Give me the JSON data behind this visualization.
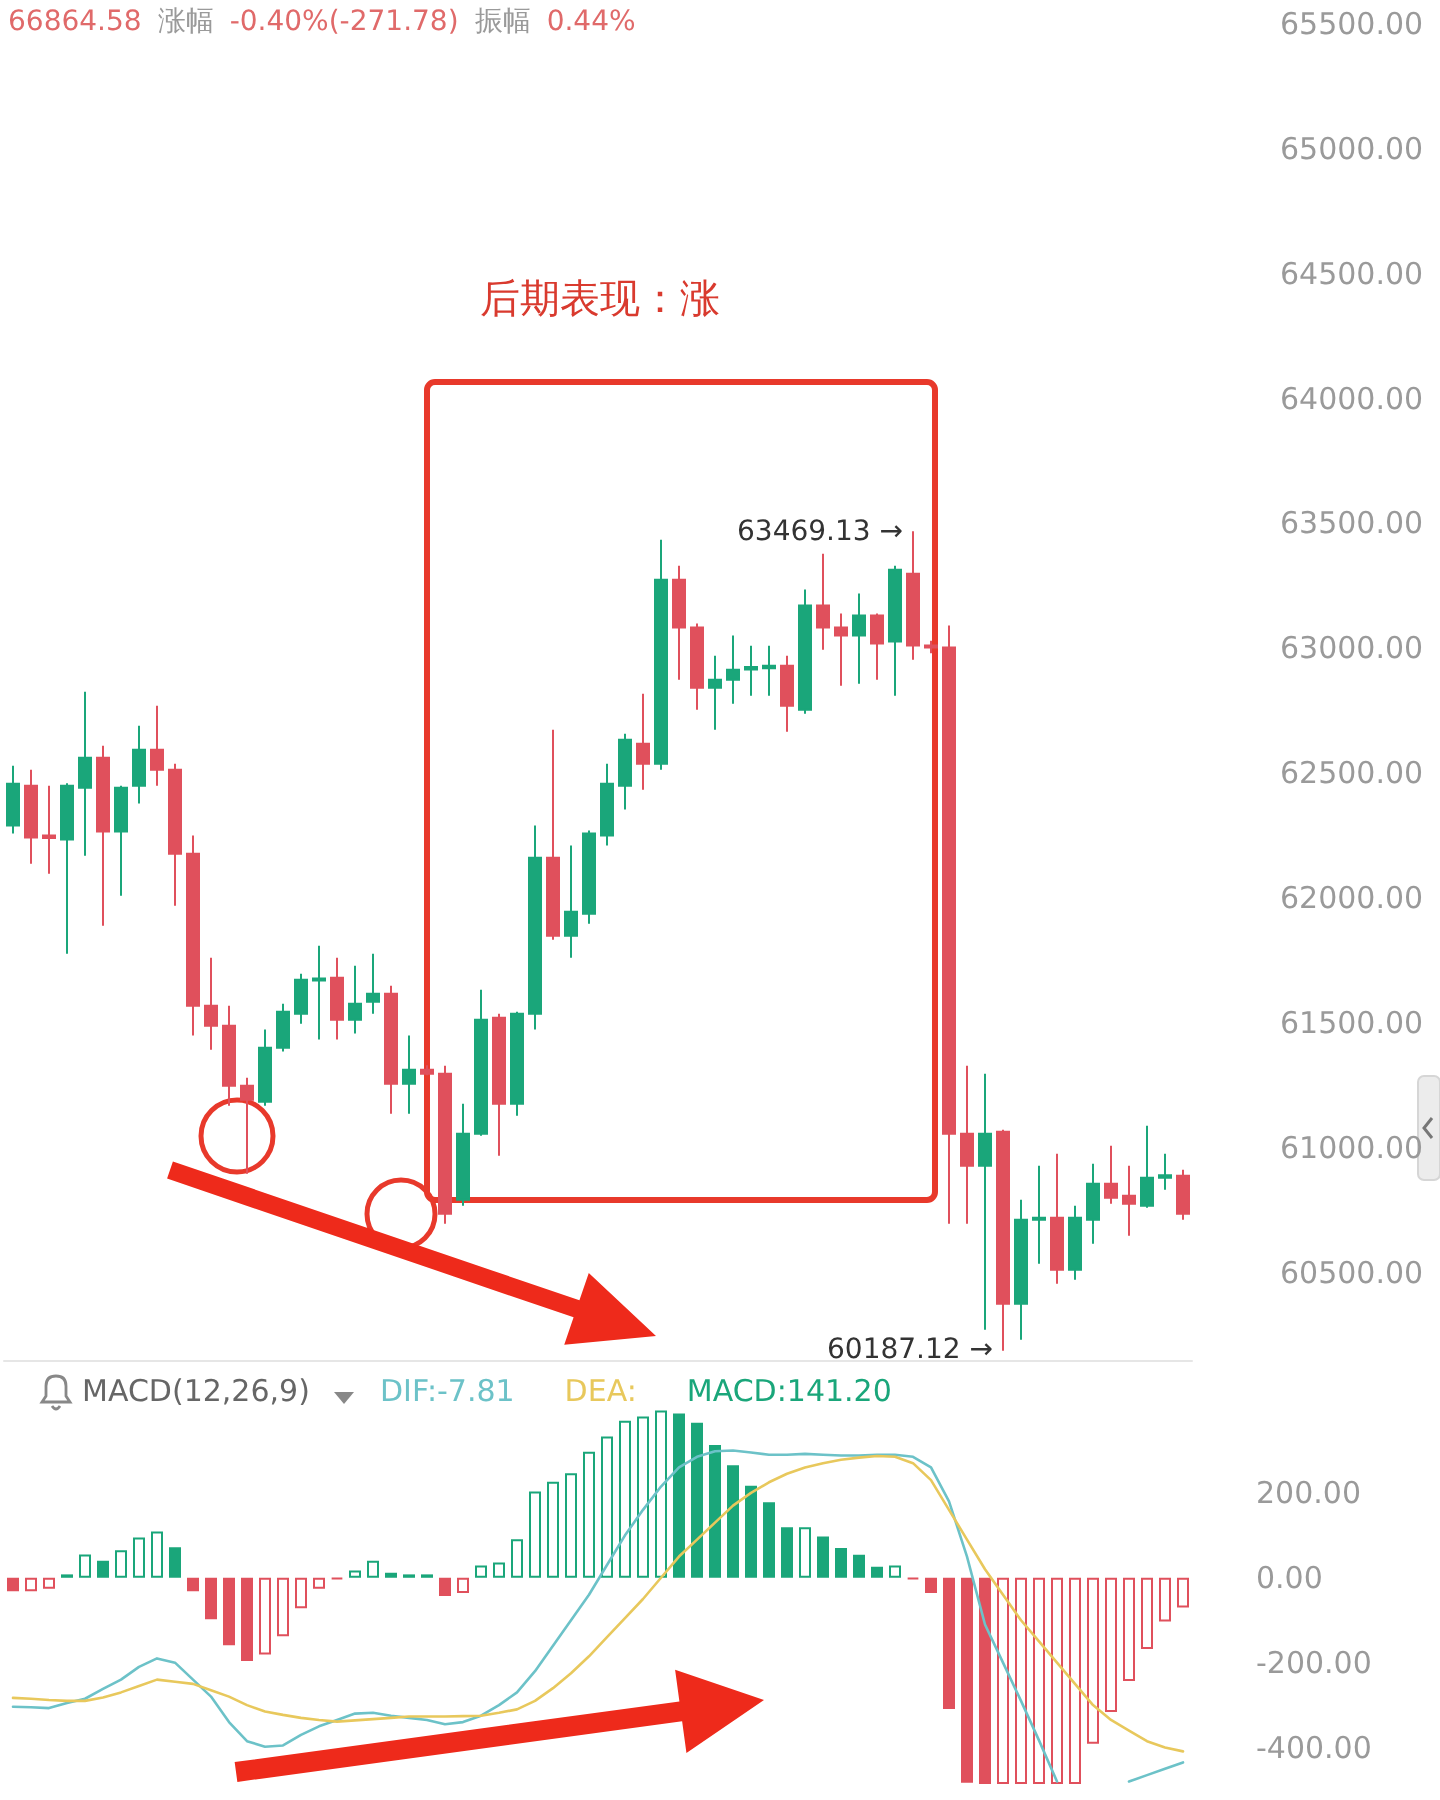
{
  "chart_data": [
    {
      "type": "candlestick",
      "annotations": [
        "66864.58",
        "涨幅",
        "-0.40%(-271.78)",
        "振幅",
        "0.44%",
        "后期表现：涨",
        "63469.13 →",
        "60187.12 →"
      ],
      "categories": [
        null,
        null,
        null,
        null,
        null,
        null,
        null,
        null,
        null,
        null,
        null,
        null,
        null,
        null,
        null,
        null,
        null,
        null,
        null,
        null,
        null,
        null,
        null,
        null,
        null,
        null,
        null,
        null,
        null,
        null,
        null,
        null,
        null,
        null,
        null,
        null,
        null,
        null,
        null,
        null,
        null,
        null,
        null,
        null,
        null,
        null,
        null,
        null,
        null,
        null,
        null,
        null,
        null,
        null,
        null,
        null,
        null,
        null,
        null,
        null,
        null,
        null,
        null,
        null,
        null,
        null
      ],
      "ohlc": [
        [
          62290,
          62530,
          62258,
          62458
        ],
        [
          62450,
          62514,
          62137,
          62242
        ],
        [
          62250,
          62450,
          62097,
          62240
        ],
        [
          62234,
          62460,
          61777,
          62450
        ],
        [
          62442,
          62826,
          62169,
          62562
        ],
        [
          62562,
          62610,
          61889,
          62266
        ],
        [
          62266,
          62450,
          62009,
          62442
        ],
        [
          62450,
          62690,
          62378,
          62594
        ],
        [
          62594,
          62770,
          62450,
          62514
        ],
        [
          62514,
          62538,
          61969,
          62177
        ],
        [
          62177,
          62250,
          61449,
          61569
        ],
        [
          61569,
          61761,
          61392,
          61489
        ],
        [
          61489,
          61569,
          61168,
          61248
        ],
        [
          61248,
          61280,
          60896,
          61192
        ],
        [
          61184,
          61473,
          61168,
          61400
        ],
        [
          61400,
          61577,
          61385,
          61545
        ],
        [
          61537,
          61697,
          61497,
          61673
        ],
        [
          61670,
          61809,
          61433,
          61678
        ],
        [
          61681,
          61761,
          61433,
          61513
        ],
        [
          61513,
          61729,
          61457,
          61577
        ],
        [
          61585,
          61777,
          61537,
          61617
        ],
        [
          61617,
          61649,
          61136,
          61256
        ],
        [
          61256,
          61449,
          61136,
          61312
        ],
        [
          61312,
          61330,
          61290,
          61296
        ],
        [
          61296,
          61328,
          60696,
          60736
        ],
        [
          60792,
          61176,
          60768,
          61056
        ],
        [
          61056,
          61633,
          61048,
          61513
        ],
        [
          61521,
          61537,
          60968,
          61176
        ],
        [
          61176,
          61545,
          61128,
          61537
        ],
        [
          61537,
          62290,
          61473,
          62161
        ],
        [
          62161,
          62674,
          61833,
          61849
        ],
        [
          61849,
          62210,
          61761,
          61945
        ],
        [
          61937,
          62270,
          61897,
          62258
        ],
        [
          62250,
          62538,
          62210,
          62458
        ],
        [
          62450,
          62658,
          62354,
          62634
        ],
        [
          62618,
          62818,
          62434,
          62538
        ],
        [
          62538,
          63435,
          62514,
          63275
        ],
        [
          63275,
          63331,
          62874,
          63083
        ],
        [
          63083,
          63099,
          62754,
          62842
        ],
        [
          62842,
          62970,
          62674,
          62874
        ],
        [
          62874,
          63051,
          62778,
          62914
        ],
        [
          62915,
          63010,
          62810,
          62925
        ],
        [
          62920,
          63010,
          62810,
          62930
        ],
        [
          62930,
          62970,
          62666,
          62770
        ],
        [
          62754,
          63235,
          62738,
          63171
        ],
        [
          63171,
          63379,
          62994,
          63083
        ],
        [
          63083,
          63139,
          62850,
          63051
        ],
        [
          63051,
          63219,
          62858,
          63131
        ],
        [
          63131,
          63139,
          62874,
          63019
        ],
        [
          63027,
          63331,
          62810,
          63315
        ],
        [
          63299,
          63469.13,
          62954,
          63011
        ],
        [
          63011,
          63030,
          62980,
          63003
        ],
        [
          63003,
          63091,
          60696,
          61056
        ],
        [
          61056,
          61328,
          60696,
          60928
        ],
        [
          60928,
          61296,
          60271,
          61056
        ],
        [
          61064,
          61072,
          60187.12,
          60375
        ],
        [
          60375,
          60792,
          60231,
          60712
        ],
        [
          60712,
          60928,
          60535,
          60720
        ],
        [
          60720,
          60976,
          60455,
          60511
        ],
        [
          60511,
          60768,
          60471,
          60720
        ],
        [
          60712,
          60936,
          60616,
          60856
        ],
        [
          60856,
          61008,
          60776,
          60800
        ],
        [
          60808,
          60928,
          60648,
          60776
        ],
        [
          60768,
          61088,
          60760,
          60880
        ],
        [
          60880,
          60976,
          60832,
          60890
        ],
        [
          60888,
          60912,
          60712,
          60736
        ]
      ],
      "colors": [
        "#1aa67a",
        "#e0505c",
        "#e0505c",
        "#1aa67a",
        "#1aa67a",
        "#e0505c",
        "#1aa67a",
        "#1aa67a",
        "#e0505c",
        "#e0505c",
        "#e0505c",
        "#e0505c",
        "#e0505c",
        "#e0505c",
        "#1aa67a",
        "#1aa67a",
        "#1aa67a",
        "#1aa67a",
        "#e0505c",
        "#1aa67a",
        "#1aa67a",
        "#e0505c",
        "#1aa67a",
        "#e0505c",
        "#e0505c",
        "#1aa67a",
        "#1aa67a",
        "#e0505c",
        "#1aa67a",
        "#1aa67a",
        "#e0505c",
        "#1aa67a",
        "#1aa67a",
        "#1aa67a",
        "#1aa67a",
        "#e0505c",
        "#1aa67a",
        "#e0505c",
        "#e0505c",
        "#1aa67a",
        "#1aa67a",
        "#1aa67a",
        "#1aa67a",
        "#e0505c",
        "#1aa67a",
        "#e0505c",
        "#e0505c",
        "#1aa67a",
        "#e0505c",
        "#1aa67a",
        "#e0505c",
        "#e0505c",
        "#e0505c",
        "#e0505c",
        "#1aa67a",
        "#e0505c",
        "#1aa67a",
        "#1aa67a",
        "#e0505c",
        "#1aa67a",
        "#1aa67a",
        "#e0505c",
        "#e0505c",
        "#1aa67a",
        "#1aa67a",
        "#e0505c"
      ],
      "ylim": [
        60150,
        65500
      ],
      "yticks": [
        {
          "value": 60500,
          "label": "60500.00"
        },
        {
          "value": 61000,
          "label": "61000.00"
        },
        {
          "value": 61500,
          "label": "61500.00"
        },
        {
          "value": 62000,
          "label": "62000.00"
        },
        {
          "value": 62500,
          "label": "62500.00"
        },
        {
          "value": 63000,
          "label": "63000.00"
        },
        {
          "value": 63500,
          "label": "63500.00"
        },
        {
          "value": 64000,
          "label": "64000.00"
        },
        {
          "value": 64500,
          "label": "64500.00"
        },
        {
          "value": 65000,
          "label": "65000.00"
        },
        {
          "value": 65500,
          "label": "65500.00"
        }
      ],
      "tick_labels": "y"
    },
    {
      "type": "bar",
      "title": "MACD(12,26,9)",
      "legend": "top left",
      "marker": "none",
      "line_style": "solid",
      "tick_labels": "y",
      "categories": [
        null,
        null,
        null,
        null,
        null,
        null,
        null,
        null,
        null,
        null,
        null,
        null,
        null,
        null,
        null,
        null,
        null,
        null,
        null,
        null,
        null,
        null,
        null,
        null,
        null,
        null,
        null,
        null,
        null,
        null,
        null,
        null,
        null,
        null,
        null,
        null,
        null,
        null,
        null,
        null,
        null,
        null,
        null,
        null,
        null,
        null,
        null,
        null,
        null,
        null,
        null,
        null,
        null,
        null,
        null,
        null,
        null,
        null,
        null,
        null,
        null,
        null,
        null,
        null,
        null,
        null
      ],
      "series": [
        {
          "type": "line",
          "name": "DIF:-7.81",
          "color": "#6cc2c8",
          "values": [
            -304,
            -305,
            -307,
            -295,
            -285,
            -262,
            -240,
            -210,
            -190,
            -200,
            -240,
            -280,
            -340,
            -385,
            -398,
            -395,
            -370,
            -350,
            -335,
            -320,
            -318,
            -325,
            -330,
            -335,
            -345,
            -340,
            -325,
            -300,
            -270,
            -220,
            -160,
            -100,
            -40,
            30,
            100,
            160,
            215,
            260,
            285,
            298,
            300,
            295,
            290,
            290,
            292,
            290,
            288,
            288,
            290,
            290,
            285,
            260,
            180,
            50,
            -110,
            -200,
            -290,
            -383,
            -480,
            null,
            null,
            null,
            -480,
            -465,
            -450,
            -435
          ]
        },
        {
          "type": "line",
          "name": "DEA:",
          "color": "#e8c85c",
          "values": [
            -283,
            -285,
            -288,
            -290,
            -290,
            -282,
            -270,
            -255,
            -240,
            -245,
            -250,
            -265,
            -280,
            -300,
            -315,
            -323,
            -330,
            -335,
            -339,
            -336,
            -333,
            -330,
            -327,
            -327,
            -327,
            -326,
            -325,
            -318,
            -310,
            -290,
            -260,
            -225,
            -185,
            -140,
            -95,
            -50,
            0,
            50,
            90,
            130,
            170,
            200,
            225,
            245,
            260,
            270,
            278,
            283,
            287,
            285,
            270,
            230,
            160,
            90,
            20,
            -40,
            -100,
            -150,
            -200,
            -250,
            -300,
            -335,
            -360,
            -385,
            -400,
            -409
          ]
        },
        {
          "type": "bar",
          "name": "MACD:141.20",
          "color": "#1aa67a",
          "values": [
            -32,
            -32,
            -26,
            8,
            55,
            40,
            65,
            95,
            109,
            72,
            -32,
            -98,
            -159,
            -196,
            -181,
            -138,
            -72,
            -26,
            -3,
            17,
            40,
            12,
            8,
            8,
            -43,
            -36,
            29,
            36,
            91,
            203,
            226,
            246,
            297,
            333,
            370,
            380,
            394,
            387,
            365,
            313,
            265,
            217,
            178,
            119,
            119,
            97,
            70,
            54,
            26,
            29,
            -3,
            -36,
            -309,
            -483,
            -486,
            -486,
            -486,
            -486,
            -486,
            -486,
            -391,
            -316,
            -243,
            -168,
            -103,
            -70
          ],
          "colors": [
            "#e0505c",
            "#e0505c",
            "#e0505c",
            "#1aa67a",
            "#1aa67a",
            "#1aa67a",
            "#1aa67a",
            "#1aa67a",
            "#1aa67a",
            "#1aa67a",
            "#e0505c",
            "#e0505c",
            "#e0505c",
            "#e0505c",
            "#e0505c",
            "#e0505c",
            "#e0505c",
            "#e0505c",
            "#e0505c",
            "#1aa67a",
            "#1aa67a",
            "#1aa67a",
            "#1aa67a",
            "#1aa67a",
            "#e0505c",
            "#e0505c",
            "#1aa67a",
            "#1aa67a",
            "#1aa67a",
            "#1aa67a",
            "#1aa67a",
            "#1aa67a",
            "#1aa67a",
            "#1aa67a",
            "#1aa67a",
            "#1aa67a",
            "#1aa67a",
            "#1aa67a",
            "#1aa67a",
            "#1aa67a",
            "#1aa67a",
            "#1aa67a",
            "#1aa67a",
            "#1aa67a",
            "#1aa67a",
            "#1aa67a",
            "#1aa67a",
            "#1aa67a",
            "#1aa67a",
            "#1aa67a",
            "#e0505c",
            "#e0505c",
            "#e0505c",
            "#e0505c",
            "#e0505c",
            "#e0505c",
            "#e0505c",
            "#e0505c",
            "#e0505c",
            "#e0505c",
            "#e0505c",
            "#e0505c",
            "#e0505c",
            "#e0505c",
            "#e0505c",
            "#e0505c"
          ]
        }
      ],
      "ylim": [
        -500,
        400
      ],
      "yticks": [
        {
          "value": -400,
          "label": "-400.00"
        },
        {
          "value": -200,
          "label": "-200.00"
        },
        {
          "value": 0,
          "label": "0.00"
        },
        {
          "value": 200,
          "label": "200.00"
        }
      ]
    }
  ]
}
